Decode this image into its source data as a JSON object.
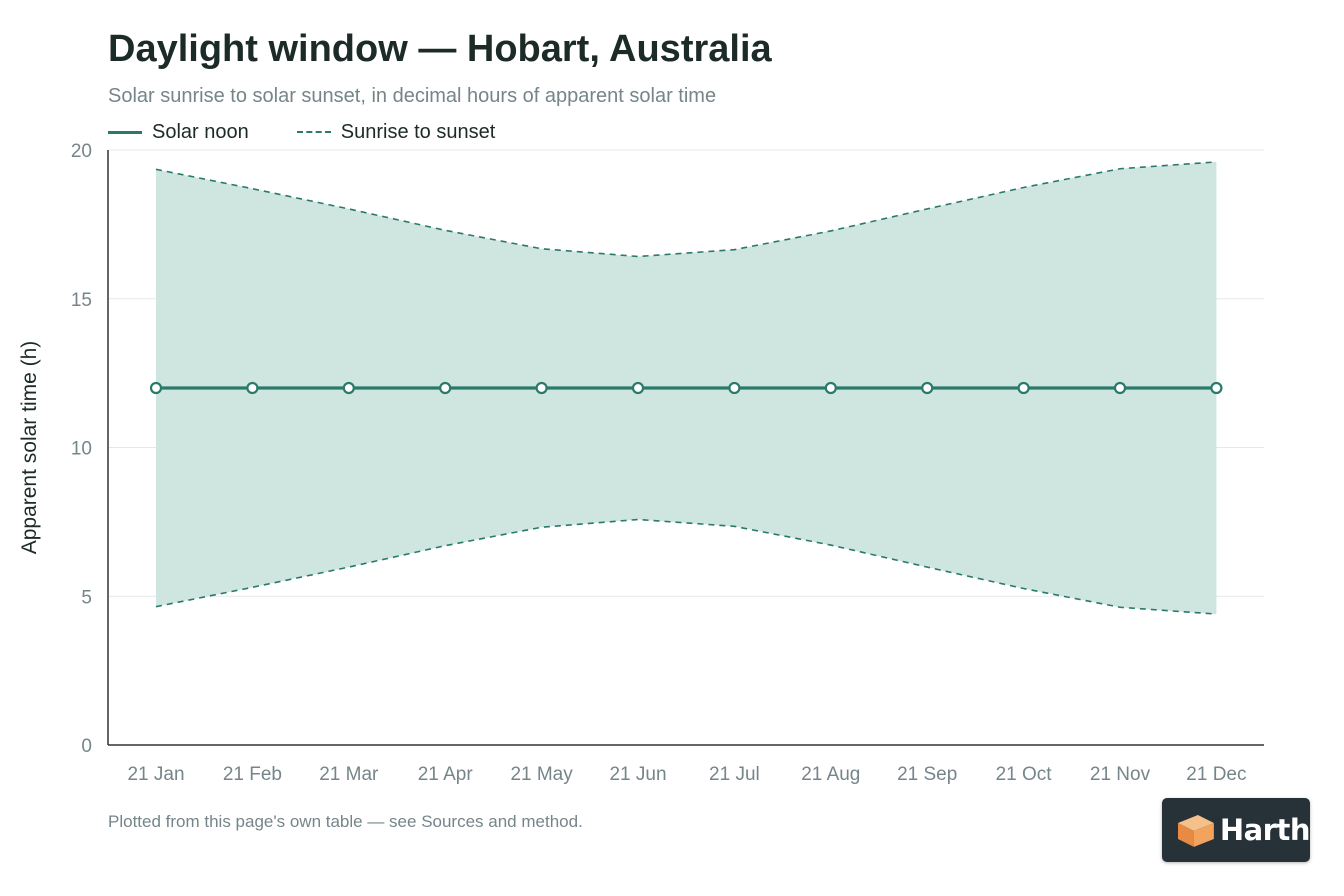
{
  "header": {
    "title": "Daylight window — Hobart, Australia",
    "subtitle": "Solar sunrise to solar sunset, in decimal hours of apparent solar time"
  },
  "legend": {
    "solar_noon": "Solar noon",
    "sunrise_sunset": "Sunrise to sunset"
  },
  "footnote": "Plotted from this page's own table — see Sources and method.",
  "brand": {
    "name": "Harth"
  },
  "colors": {
    "line": "#2a7a6c",
    "band_fill": "#cfe5e0",
    "grid": "#e4e8e8",
    "axis": "#333333",
    "tick_text": "#76858a"
  },
  "chart_data": {
    "type": "area",
    "ylabel": "Apparent solar time (h)",
    "xlabel": "",
    "ylim": [
      0,
      20
    ],
    "yticks": [
      0,
      5,
      10,
      15,
      20
    ],
    "grid": true,
    "legend_position": "top-left",
    "categories": [
      "21 Jan",
      "21 Feb",
      "21 Mar",
      "21 Apr",
      "21 May",
      "21 Jun",
      "21 Jul",
      "21 Aug",
      "21 Sep",
      "21 Oct",
      "21 Nov",
      "21 Dec"
    ],
    "series": [
      {
        "name": "Solar noon",
        "style": "solid-with-markers",
        "values": [
          12,
          12,
          12,
          12,
          12,
          12,
          12,
          12,
          12,
          12,
          12,
          12
        ]
      },
      {
        "name": "Sunrise to sunset",
        "style": "dashed-band",
        "sunrise": [
          4.65,
          5.3,
          5.98,
          6.7,
          7.32,
          7.58,
          7.35,
          6.72,
          5.98,
          5.26,
          4.63,
          4.4
        ],
        "sunset": [
          19.35,
          18.7,
          18.02,
          17.3,
          16.68,
          16.42,
          16.65,
          17.28,
          18.02,
          18.74,
          19.37,
          19.6
        ]
      }
    ]
  }
}
